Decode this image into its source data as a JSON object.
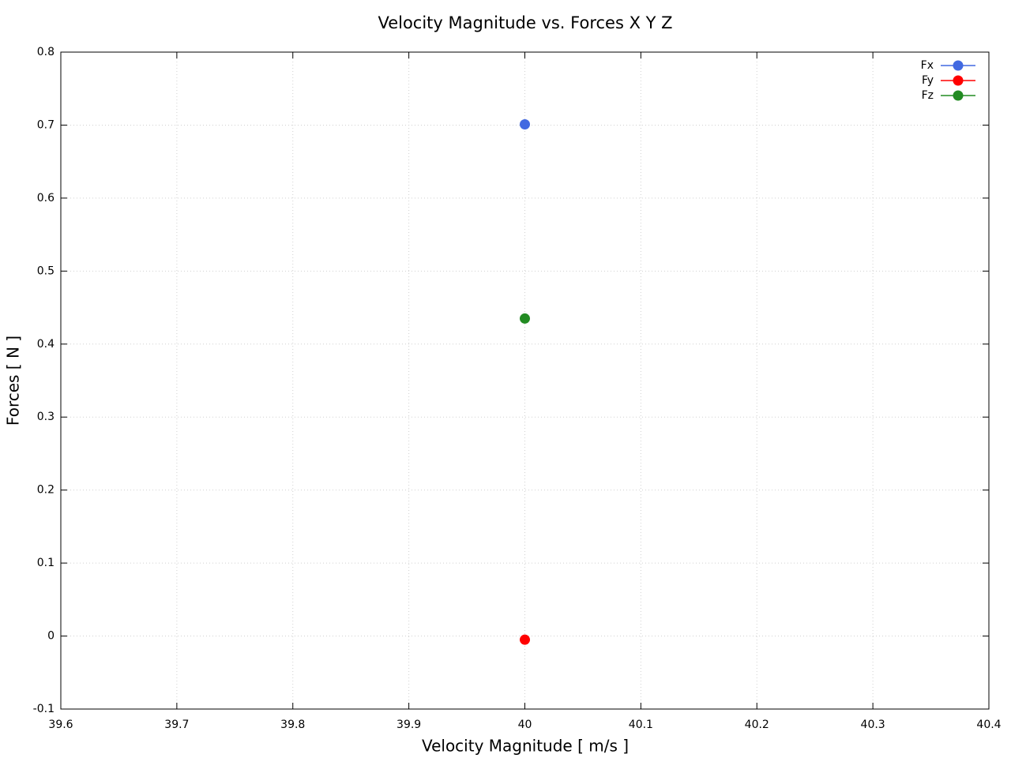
{
  "chart_data": {
    "type": "line",
    "title": "Velocity Magnitude vs. Forces X Y Z",
    "x_label": "Velocity Magnitude [ m/s ]",
    "y_label": "Forces [ N ]",
    "x": [
      40
    ],
    "series": [
      {
        "name": "Fx",
        "color": "#4169e1",
        "values": [
          0.701
        ]
      },
      {
        "name": "Fy",
        "color": "#ff0000",
        "values": [
          -0.005
        ]
      },
      {
        "name": "Fz",
        "color": "#228b22",
        "values": [
          0.435
        ]
      }
    ],
    "xlim": [
      39.6,
      40.4
    ],
    "xticks": [
      39.6,
      39.7,
      39.8,
      39.9,
      40,
      40.1,
      40.2,
      40.3,
      40.4
    ],
    "ylim": [
      -0.1,
      0.8
    ],
    "yticks": [
      -0.1,
      0,
      0.1,
      0.2,
      0.3,
      0.4,
      0.5,
      0.6,
      0.7,
      0.8
    ],
    "grid": true,
    "legend": "top-right"
  }
}
